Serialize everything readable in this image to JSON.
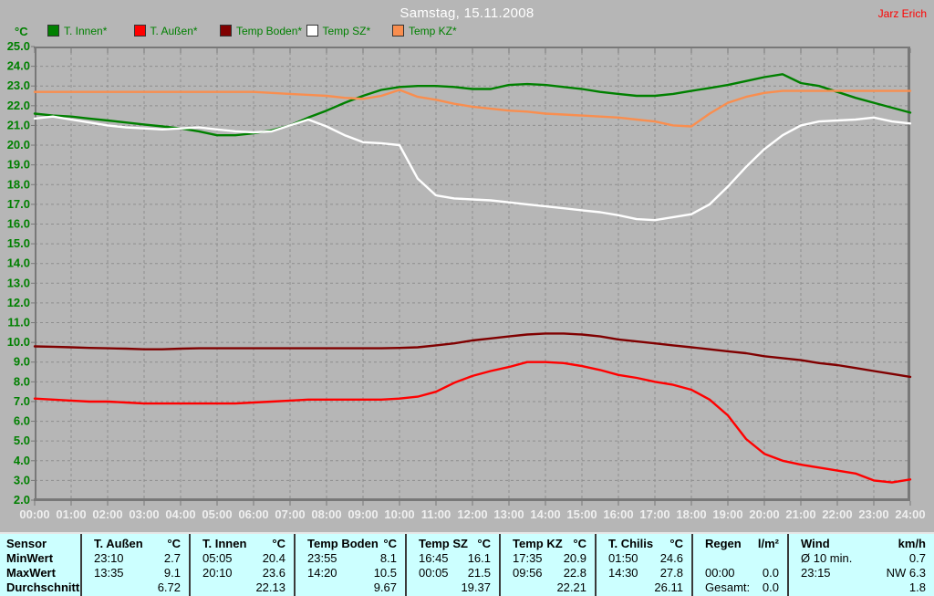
{
  "header": {
    "title": "Samstag, 15.11.2008",
    "user": "Jarz Erich"
  },
  "legend": {
    "axis_unit": "°C",
    "items": [
      {
        "label": "T. Innen*",
        "color": "#008000"
      },
      {
        "label": "T. Außen*",
        "color": "#ff0000"
      },
      {
        "label": "Temp Boden*",
        "color": "#800000"
      },
      {
        "label": "Temp SZ*",
        "color": "#ffffff"
      },
      {
        "label": "Temp KZ*",
        "color": "#f98e4f"
      }
    ]
  },
  "colors": {
    "background": "#b6b6b6",
    "grid": "#8e8e8e",
    "plot_border": "#787878",
    "y_label": "#008000",
    "x_label": "#efefef",
    "title": "#ffffff",
    "user": "#ff0000",
    "table_background": "#ccffff"
  },
  "chart_data": {
    "type": "line",
    "title": "Samstag, 15.11.2008",
    "xlim": [
      0,
      24
    ],
    "ylim": [
      2,
      25
    ],
    "grid": "dashed",
    "legend_position": "top",
    "x_start": 0,
    "x_step": 0.5,
    "x_tick_labels": [
      "00:00",
      "01:00",
      "02:00",
      "03:00",
      "04:00",
      "05:00",
      "06:00",
      "07:00",
      "08:00",
      "09:00",
      "10:00",
      "11:00",
      "12:00",
      "13:00",
      "14:00",
      "15:00",
      "16:00",
      "17:00",
      "18:00",
      "19:00",
      "20:00",
      "21:00",
      "22:00",
      "23:00",
      "24:00"
    ],
    "y_tick_labels": [
      "25.0",
      "24.0",
      "23.0",
      "22.0",
      "21.0",
      "20.0",
      "19.0",
      "18.0",
      "17.0",
      "16.0",
      "15.0",
      "14.0",
      "13.0",
      "12.0",
      "11.0",
      "10.0",
      "9.0",
      "8.0",
      "7.0",
      "6.0",
      "5.0",
      "4.0",
      "3.0",
      "2.0"
    ],
    "ylabel": "°C",
    "series": [
      {
        "id": "t-innen",
        "name": "T. Innen",
        "color": "#008000",
        "values": [
          21.6,
          21.5,
          21.45,
          21.35,
          21.25,
          21.15,
          21.05,
          20.95,
          20.85,
          20.7,
          20.5,
          20.5,
          20.6,
          20.75,
          21.0,
          21.4,
          21.75,
          22.15,
          22.5,
          22.8,
          22.95,
          23.0,
          23.0,
          22.95,
          22.85,
          22.85,
          23.05,
          23.1,
          23.05,
          22.95,
          22.85,
          22.7,
          22.6,
          22.5,
          22.5,
          22.6,
          22.75,
          22.9,
          23.05,
          23.25,
          23.45,
          23.6,
          23.15,
          23.0,
          22.7,
          22.4,
          22.15,
          21.9,
          21.65
        ]
      },
      {
        "id": "t-aussen",
        "name": "T. Außen",
        "color": "#ff0000",
        "values": [
          7.15,
          7.1,
          7.05,
          7.0,
          7.0,
          6.95,
          6.9,
          6.9,
          6.9,
          6.9,
          6.9,
          6.9,
          6.95,
          7.0,
          7.05,
          7.1,
          7.1,
          7.1,
          7.1,
          7.1,
          7.15,
          7.25,
          7.5,
          7.95,
          8.3,
          8.55,
          8.75,
          9.0,
          9.0,
          8.95,
          8.8,
          8.6,
          8.35,
          8.2,
          8.0,
          7.85,
          7.6,
          7.1,
          6.3,
          5.1,
          4.35,
          4.0,
          3.8,
          3.65,
          3.5,
          3.35,
          3.0,
          2.9,
          3.05
        ]
      },
      {
        "id": "temp-boden",
        "name": "Temp Boden",
        "color": "#800000",
        "values": [
          9.8,
          9.78,
          9.75,
          9.72,
          9.7,
          9.68,
          9.65,
          9.65,
          9.68,
          9.7,
          9.7,
          9.7,
          9.7,
          9.7,
          9.7,
          9.7,
          9.7,
          9.7,
          9.7,
          9.7,
          9.72,
          9.75,
          9.85,
          9.95,
          10.1,
          10.2,
          10.3,
          10.4,
          10.45,
          10.45,
          10.4,
          10.3,
          10.15,
          10.05,
          9.95,
          9.85,
          9.75,
          9.65,
          9.55,
          9.45,
          9.3,
          9.2,
          9.1,
          8.95,
          8.85,
          8.7,
          8.55,
          8.4,
          8.25
        ]
      },
      {
        "id": "temp-sz",
        "name": "Temp SZ",
        "color": "#ffffff",
        "values": [
          21.35,
          21.45,
          21.3,
          21.15,
          21.0,
          20.9,
          20.85,
          20.8,
          20.85,
          20.9,
          20.8,
          20.7,
          20.65,
          20.7,
          21.0,
          21.3,
          20.95,
          20.5,
          20.15,
          20.1,
          20.0,
          18.3,
          17.45,
          17.3,
          17.25,
          17.2,
          17.1,
          17.0,
          16.9,
          16.8,
          16.7,
          16.6,
          16.45,
          16.25,
          16.2,
          16.35,
          16.5,
          17.0,
          17.9,
          18.9,
          19.8,
          20.5,
          21.0,
          21.2,
          21.25,
          21.3,
          21.4,
          21.2,
          21.1
        ]
      },
      {
        "id": "temp-kz",
        "name": "Temp KZ",
        "color": "#f98e4f",
        "values": [
          22.7,
          22.7,
          22.7,
          22.7,
          22.7,
          22.7,
          22.7,
          22.7,
          22.7,
          22.7,
          22.7,
          22.7,
          22.7,
          22.65,
          22.6,
          22.55,
          22.5,
          22.4,
          22.35,
          22.5,
          22.8,
          22.45,
          22.3,
          22.1,
          21.95,
          21.85,
          21.75,
          21.7,
          21.6,
          21.55,
          21.5,
          21.45,
          21.4,
          21.3,
          21.2,
          21.0,
          20.95,
          21.6,
          22.15,
          22.45,
          22.65,
          22.75,
          22.75,
          22.75,
          22.75,
          22.75,
          22.75,
          22.75,
          22.75
        ]
      }
    ]
  },
  "stats_table": {
    "row_labels": [
      "Sensor",
      "MinWert",
      "MaxWert",
      "Durchschnitt"
    ],
    "columns": [
      {
        "name": "T. Außen",
        "unit": "°C",
        "min": [
          "23:10",
          "2.7"
        ],
        "max": [
          "13:35",
          "9.1"
        ],
        "avg": [
          "",
          "6.72"
        ]
      },
      {
        "name": "T. Innen",
        "unit": "°C",
        "min": [
          "05:05",
          "20.4"
        ],
        "max": [
          "20:10",
          "23.6"
        ],
        "avg": [
          "",
          "22.13"
        ]
      },
      {
        "name": "Temp Boden",
        "unit": "°C",
        "min": [
          "23:55",
          "8.1"
        ],
        "max": [
          "14:20",
          "10.5"
        ],
        "avg": [
          "",
          "9.67"
        ]
      },
      {
        "name": "Temp SZ",
        "unit": "°C",
        "min": [
          "16:45",
          "16.1"
        ],
        "max": [
          "00:05",
          "21.5"
        ],
        "avg": [
          "",
          "19.37"
        ]
      },
      {
        "name": "Temp KZ",
        "unit": "°C",
        "min": [
          "17:35",
          "20.9"
        ],
        "max": [
          "09:56",
          "22.8"
        ],
        "avg": [
          "",
          "22.21"
        ]
      },
      {
        "name": "T. Chilis",
        "unit": "°C",
        "min": [
          "01:50",
          "24.6"
        ],
        "max": [
          "14:30",
          "27.8"
        ],
        "avg": [
          "",
          "26.11"
        ]
      },
      {
        "name": "Regen",
        "unit": "l/m²",
        "min": [
          "",
          ""
        ],
        "max": [
          "00:00",
          "0.0"
        ],
        "avg": [
          "Gesamt:",
          "0.0"
        ]
      },
      {
        "name": "Wind",
        "unit": "km/h",
        "min": [
          "Ø 10 min.",
          "0.7"
        ],
        "max": [
          "23:15",
          "NW 6.3"
        ],
        "avg": [
          "",
          "1.8"
        ]
      }
    ]
  }
}
